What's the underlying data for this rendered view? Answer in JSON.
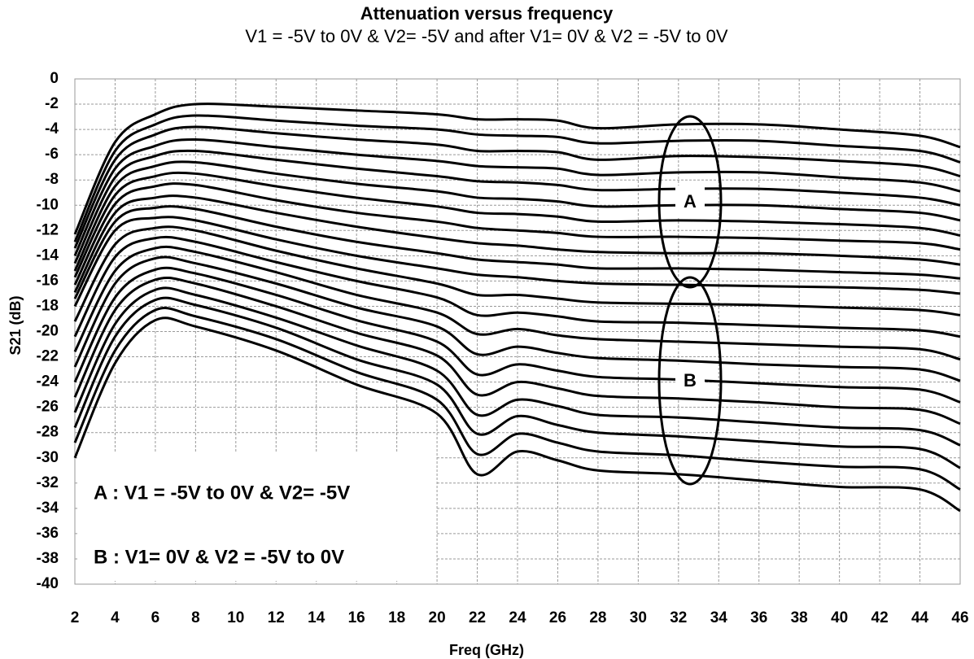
{
  "chart_data": {
    "type": "line",
    "title": "Attenuation versus frequency",
    "subtitle": "V1 = -5V to 0V & V2= -5V and after V1= 0V & V2 = -5V to 0V",
    "x_label": "Freq (GHz)",
    "y_label": "S21 (dB)",
    "annotations": [
      "A",
      "B",
      "A : V1 = -5V to 0V & V2= -5V",
      "B : V1= 0V & V2 = -5V to 0V"
    ],
    "xlim": [
      2,
      46
    ],
    "ylim": [
      -40,
      0
    ],
    "xticks": [
      2,
      4,
      6,
      8,
      10,
      12,
      14,
      16,
      18,
      20,
      22,
      24,
      26,
      28,
      30,
      32,
      34,
      36,
      38,
      40,
      42,
      44,
      46
    ],
    "yticks": [
      0,
      -2,
      -4,
      -6,
      -8,
      -10,
      -12,
      -14,
      -16,
      -18,
      -20,
      -22,
      -24,
      -26,
      -28,
      -30,
      -32,
      -34,
      -36,
      -38,
      -40
    ],
    "grid": true,
    "x": [
      2,
      4,
      6,
      8,
      12,
      16,
      20,
      22,
      24,
      26,
      28,
      32,
      36,
      40,
      44,
      46
    ],
    "series": [
      {
        "color": "#000000",
        "values": [
          -12.3,
          -5,
          -2.8,
          -2,
          -2.2,
          -2.5,
          -2.8,
          -3.2,
          -3.2,
          -3.3,
          -3.9,
          -3.6,
          -3.6,
          -4.0,
          -4.5,
          -5.4
        ]
      },
      {
        "color": "#000000",
        "values": [
          -12.9,
          -5.7,
          -3.6,
          -2.9,
          -3.3,
          -3.7,
          -4.0,
          -4.4,
          -4.5,
          -4.6,
          -5.1,
          -4.9,
          -4.9,
          -5.3,
          -5.7,
          -6.6
        ]
      },
      {
        "color": "#000000",
        "values": [
          -13.4,
          -6.4,
          -4.4,
          -3.8,
          -4.3,
          -4.8,
          -5.2,
          -5.7,
          -5.7,
          -5.8,
          -6.4,
          -6.1,
          -6.2,
          -6.5,
          -6.9,
          -7.7
        ]
      },
      {
        "color": "#000000",
        "values": [
          -14.0,
          -7.1,
          -5.3,
          -4.8,
          -5.4,
          -6.0,
          -6.5,
          -6.9,
          -7.0,
          -7.1,
          -7.6,
          -7.4,
          -7.4,
          -7.8,
          -8.2,
          -8.9
        ]
      },
      {
        "color": "#000000",
        "values": [
          -14.6,
          -7.8,
          -6.1,
          -5.7,
          -6.4,
          -7.1,
          -7.7,
          -8.1,
          -8.2,
          -8.4,
          -8.8,
          -8.7,
          -8.7,
          -9.0,
          -9.4,
          -10.0
        ]
      },
      {
        "color": "#000000",
        "values": [
          -15.2,
          -8.5,
          -6.9,
          -6.6,
          -7.5,
          -8.3,
          -8.9,
          -9.4,
          -9.5,
          -9.7,
          -10.1,
          -10.0,
          -10.0,
          -10.3,
          -10.6,
          -11.2
        ]
      },
      {
        "color": "#000000",
        "values": [
          -15.7,
          -9.2,
          -7.7,
          -7.5,
          -8.5,
          -9.4,
          -10.1,
          -10.6,
          -10.7,
          -10.9,
          -11.3,
          -11.2,
          -11.3,
          -11.5,
          -11.8,
          -12.4
        ]
      },
      {
        "color": "#000000",
        "values": [
          -16.3,
          -9.9,
          -8.5,
          -8.4,
          -9.6,
          -10.6,
          -11.3,
          -11.8,
          -12.0,
          -12.2,
          -12.5,
          -12.5,
          -12.6,
          -12.8,
          -13.0,
          -13.5
        ]
      },
      {
        "color": "#000000",
        "values": [
          -16.9,
          -10.6,
          -9.4,
          -9.4,
          -10.6,
          -11.7,
          -12.6,
          -13.0,
          -13.2,
          -13.5,
          -13.7,
          -13.8,
          -13.8,
          -14.0,
          -14.3,
          -14.7
        ]
      },
      {
        "color": "#000000",
        "values": [
          -17.4,
          -11.3,
          -10.2,
          -10.3,
          -11.7,
          -12.9,
          -13.8,
          -14.3,
          -14.5,
          -14.7,
          -15.0,
          -15.0,
          -15.1,
          -15.3,
          -15.5,
          -15.8
        ]
      },
      {
        "color": "#000000",
        "values": [
          -18.0,
          -12.0,
          -11.0,
          -11.2,
          -12.7,
          -14.0,
          -15.0,
          -15.5,
          -15.7,
          -16.0,
          -16.2,
          -16.3,
          -16.4,
          -16.5,
          -16.7,
          -17.0
        ]
      },
      {
        "color": "#000000",
        "values": [
          -19.2,
          -13.1,
          -11.8,
          -12.0,
          -13.6,
          -15.0,
          -16.2,
          -17.1,
          -17.1,
          -17.4,
          -17.7,
          -17.8,
          -17.9,
          -18.1,
          -18.3,
          -18.7
        ]
      },
      {
        "color": "#000000",
        "values": [
          -20.4,
          -14.1,
          -12.6,
          -12.9,
          -14.5,
          -16.0,
          -17.3,
          -18.7,
          -18.5,
          -18.8,
          -19.2,
          -19.3,
          -19.5,
          -19.7,
          -19.9,
          -20.4
        ]
      },
      {
        "color": "#000000",
        "values": [
          -21.6,
          -15.2,
          -13.4,
          -13.7,
          -15.3,
          -17.1,
          -18.5,
          -20.2,
          -19.8,
          -20.3,
          -20.6,
          -20.8,
          -21.0,
          -21.2,
          -21.4,
          -22.2
        ]
      },
      {
        "color": "#000000",
        "values": [
          -22.8,
          -16.2,
          -14.2,
          -14.6,
          -16.2,
          -18.1,
          -19.6,
          -21.8,
          -21.2,
          -21.7,
          -22.1,
          -22.3,
          -22.6,
          -22.8,
          -23.0,
          -23.9
        ]
      },
      {
        "color": "#000000",
        "values": [
          -24.0,
          -17.3,
          -15.1,
          -15.4,
          -17.1,
          -19.1,
          -20.8,
          -23.4,
          -22.6,
          -23.1,
          -23.6,
          -23.8,
          -24.1,
          -24.4,
          -24.6,
          -25.6
        ]
      },
      {
        "color": "#000000",
        "values": [
          -25.2,
          -18.3,
          -15.9,
          -16.2,
          -18.0,
          -20.1,
          -21.9,
          -25.0,
          -24.0,
          -24.5,
          -25.1,
          -25.3,
          -25.6,
          -26.0,
          -26.2,
          -27.3
        ]
      },
      {
        "color": "#000000",
        "values": [
          -26.4,
          -19.4,
          -16.7,
          -17.1,
          -18.9,
          -21.1,
          -23.1,
          -26.6,
          -25.4,
          -25.9,
          -26.6,
          -26.8,
          -27.2,
          -27.6,
          -27.8,
          -29.0
        ]
      },
      {
        "color": "#000000",
        "values": [
          -27.6,
          -20.4,
          -17.5,
          -17.9,
          -19.7,
          -22.2,
          -24.2,
          -28.1,
          -26.7,
          -27.4,
          -28.0,
          -28.3,
          -28.7,
          -29.1,
          -29.3,
          -30.8
        ]
      },
      {
        "color": "#000000",
        "values": [
          -28.8,
          -21.5,
          -18.3,
          -18.8,
          -20.6,
          -23.2,
          -25.4,
          -29.7,
          -28.1,
          -28.8,
          -29.5,
          -29.8,
          -30.3,
          -30.7,
          -30.9,
          -32.5
        ]
      },
      {
        "color": "#000000",
        "values": [
          -30.0,
          -22.5,
          -19.1,
          -19.6,
          -21.5,
          -24.2,
          -26.5,
          -31.3,
          -29.5,
          -30.2,
          -31.0,
          -31.3,
          -31.8,
          -32.3,
          -32.5,
          -34.2
        ]
      }
    ]
  }
}
